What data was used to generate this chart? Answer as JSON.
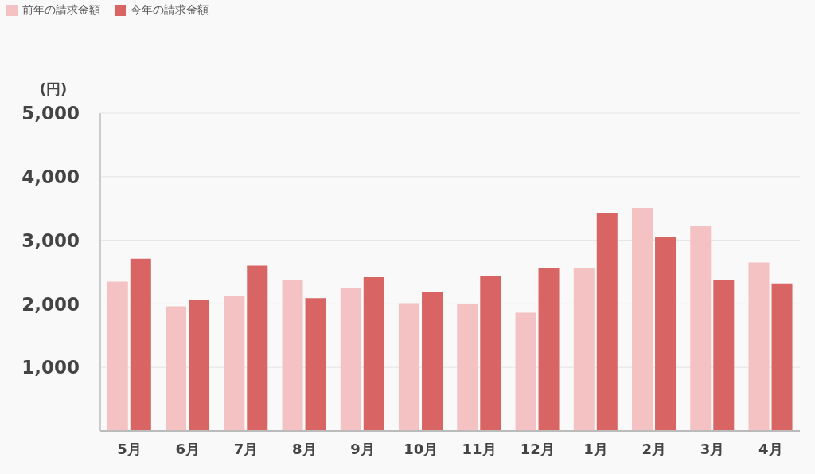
{
  "chart_data": {
    "type": "bar",
    "ylabel": "(円)",
    "categories": [
      "5月",
      "6月",
      "7月",
      "8月",
      "9月",
      "10月",
      "11月",
      "12月",
      "1月",
      "2月",
      "3月",
      "4月"
    ],
    "series": [
      {
        "name": "前年の請求金額",
        "color": "#f4c2c2",
        "values": [
          2350,
          1960,
          2120,
          2380,
          2250,
          2010,
          2000,
          1860,
          2570,
          3510,
          3220,
          2650
        ]
      },
      {
        "name": "今年の請求金額",
        "color": "#d96464",
        "values": [
          2710,
          2060,
          2600,
          2090,
          2420,
          2190,
          2430,
          2570,
          3420,
          3050,
          2370,
          2320
        ]
      }
    ],
    "ylim": [
      0,
      5000
    ],
    "yticks": [
      {
        "value": 1000,
        "label": "1,000"
      },
      {
        "value": 2000,
        "label": "2,000"
      },
      {
        "value": 3000,
        "label": "3,000"
      },
      {
        "value": 4000,
        "label": "4,000"
      },
      {
        "value": 5000,
        "label": "5,000"
      }
    ],
    "grid": "y",
    "legend": "top left"
  }
}
